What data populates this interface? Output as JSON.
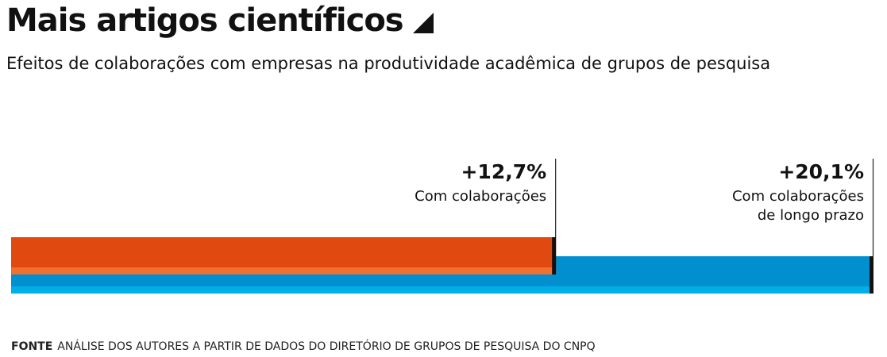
{
  "header": {
    "title": "Mais artigos científicos",
    "subtitle": "Efeitos de colaborações com empresas na produtividade acadêmica de grupos de pesquisa"
  },
  "footer": {
    "source_label": "FONTE",
    "source_text": "ANÁLISE DOS AUTORES A PARTIR DE DADOS DO DIRETÓRIO DE GRUPOS DE PESQUISA DO CNPQ"
  },
  "chart_data": {
    "type": "bar",
    "orientation": "horizontal",
    "grid": false,
    "xlim": [
      0,
      20.1
    ],
    "series": [
      {
        "label": "Com colaborações",
        "value": 12.7,
        "value_label": "+12,7%",
        "color": "#e04a10",
        "highlight_color": "#f07030"
      },
      {
        "label": "Com colaborações de longo prazo",
        "label_lines": [
          "Com colaborações",
          "de longo prazo"
        ],
        "value": 20.1,
        "value_label": "+20,1%",
        "color": "#0090d0",
        "highlight_color": "#00aee8"
      }
    ]
  }
}
